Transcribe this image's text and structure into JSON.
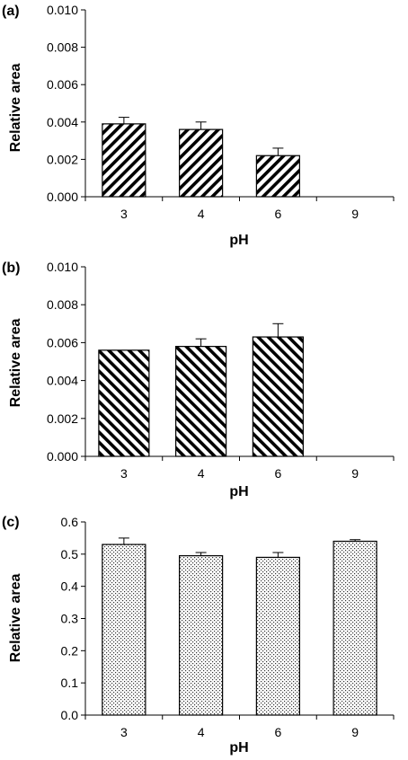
{
  "chart_data": [
    {
      "type": "bar",
      "panel_label": "(a)",
      "categories": [
        "3",
        "4",
        "6",
        "9"
      ],
      "values": [
        0.0039,
        0.0036,
        0.0022,
        0.0
      ],
      "errors": [
        0.00035,
        0.0004,
        0.0004,
        0.0
      ],
      "xlabel": "pH",
      "ylabel": "Relative area",
      "ylim": [
        0,
        0.01
      ],
      "yticks": [
        "0.000",
        "0.002",
        "0.004",
        "0.006",
        "0.008",
        "0.010"
      ],
      "pattern": "diagonal-forward",
      "grid": false
    },
    {
      "type": "bar",
      "panel_label": "(b)",
      "categories": [
        "3",
        "4",
        "6",
        "9"
      ],
      "values": [
        0.0056,
        0.0058,
        0.0063,
        0.0
      ],
      "errors": [
        0.0,
        0.0004,
        0.0007,
        0.0
      ],
      "xlabel": "pH",
      "ylabel": "Relative area",
      "ylim": [
        0,
        0.01
      ],
      "yticks": [
        "0.000",
        "0.002",
        "0.004",
        "0.006",
        "0.008",
        "0.010"
      ],
      "pattern": "diagonal-back",
      "grid": false
    },
    {
      "type": "bar",
      "panel_label": "(c)",
      "categories": [
        "3",
        "4",
        "6",
        "9"
      ],
      "values": [
        0.53,
        0.495,
        0.49,
        0.54
      ],
      "errors": [
        0.02,
        0.01,
        0.015,
        0.005
      ],
      "xlabel": "pH",
      "ylabel": "Relative area",
      "ylim": [
        0,
        0.6
      ],
      "yticks": [
        "0.0",
        "0.1",
        "0.2",
        "0.3",
        "0.4",
        "0.5",
        "0.6"
      ],
      "pattern": "dots",
      "grid": false
    }
  ]
}
